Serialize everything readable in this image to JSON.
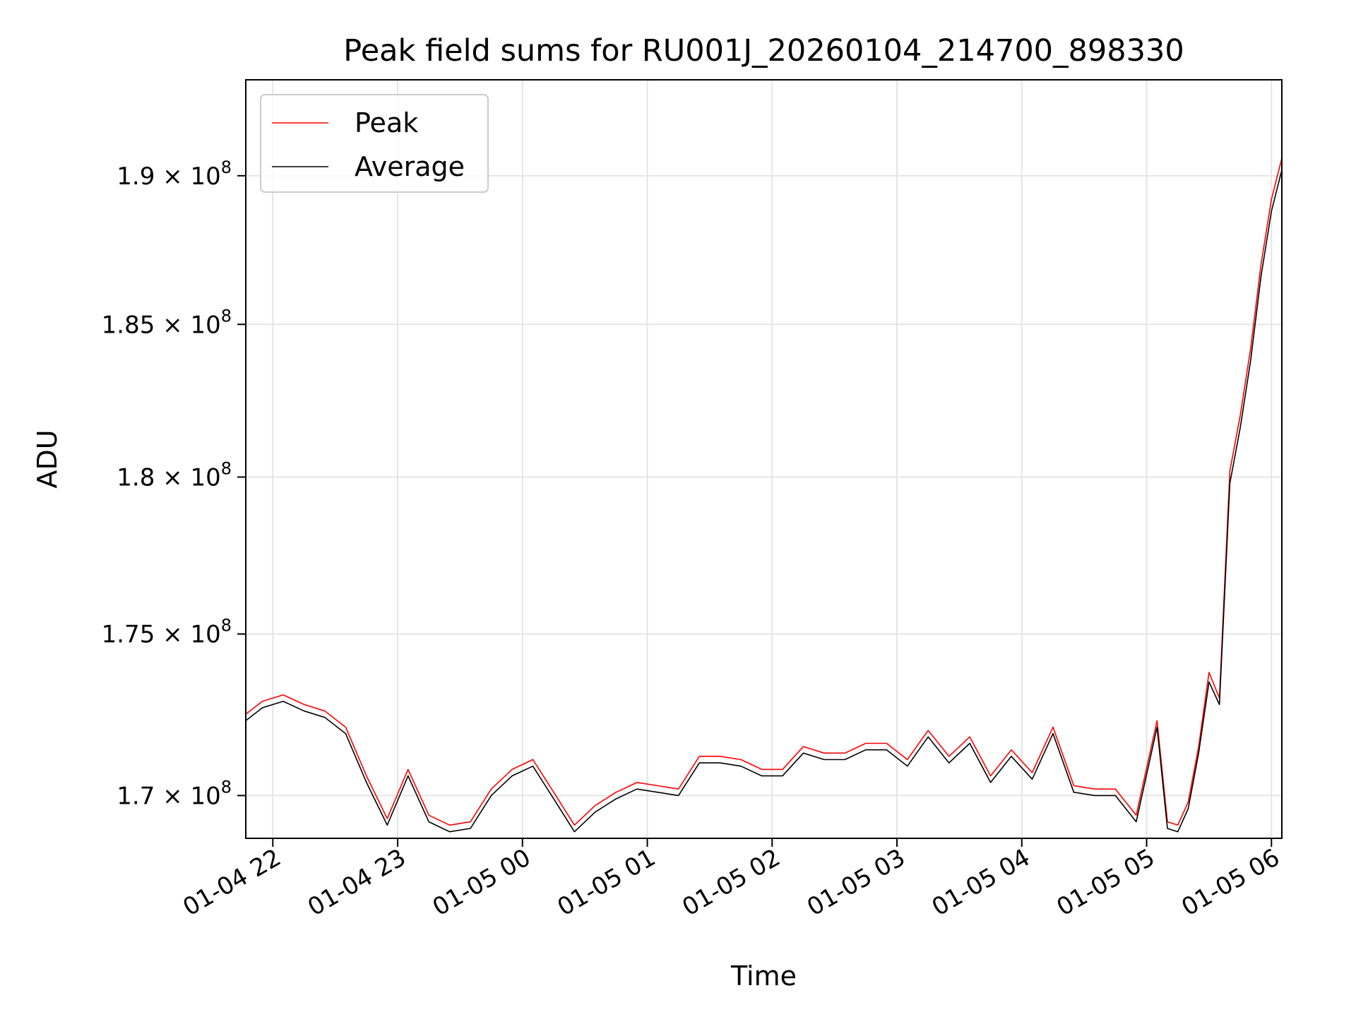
{
  "chart_data": {
    "type": "line",
    "title": "Peak field sums for RU001J_20260104_214700_898330",
    "xlabel": "Time",
    "ylabel": "ADU",
    "x_start": "2026-01-04 21:47",
    "x_end": "2026-01-05 06:05",
    "x_ticks": [
      {
        "label": "01-04 22",
        "t": "2026-01-04 22:00"
      },
      {
        "label": "01-04 23",
        "t": "2026-01-04 23:00"
      },
      {
        "label": "01-05 00",
        "t": "2026-01-05 00:00"
      },
      {
        "label": "01-05 01",
        "t": "2026-01-05 01:00"
      },
      {
        "label": "01-05 02",
        "t": "2026-01-05 02:00"
      },
      {
        "label": "01-05 03",
        "t": "2026-01-05 03:00"
      },
      {
        "label": "01-05 04",
        "t": "2026-01-05 04:00"
      },
      {
        "label": "01-05 05",
        "t": "2026-01-05 05:00"
      },
      {
        "label": "01-05 06",
        "t": "2026-01-05 06:00"
      }
    ],
    "y_scale": "log",
    "ylim": [
      168700000,
      193300000
    ],
    "y_ticks": [
      {
        "value": 170000000,
        "mantissa": "1.7",
        "exponent": "8"
      },
      {
        "value": 175000000,
        "mantissa": "1.75",
        "exponent": "8"
      },
      {
        "value": 180000000,
        "mantissa": "1.8",
        "exponent": "8"
      },
      {
        "value": 185000000,
        "mantissa": "1.85",
        "exponent": "8"
      },
      {
        "value": 190000000,
        "mantissa": "1.9",
        "exponent": "8"
      }
    ],
    "grid": true,
    "legend_position": "top-left",
    "series": [
      {
        "name": "Peak",
        "color": "#ff0000",
        "x": [
          "2026-01-04 21:47",
          "2026-01-04 21:55",
          "2026-01-04 22:05",
          "2026-01-04 22:15",
          "2026-01-04 22:25",
          "2026-01-04 22:35",
          "2026-01-04 22:45",
          "2026-01-04 22:55",
          "2026-01-04 23:05",
          "2026-01-04 23:15",
          "2026-01-04 23:25",
          "2026-01-04 23:35",
          "2026-01-04 23:45",
          "2026-01-04 23:55",
          "2026-01-05 00:05",
          "2026-01-05 00:15",
          "2026-01-05 00:25",
          "2026-01-05 00:35",
          "2026-01-05 00:45",
          "2026-01-05 00:55",
          "2026-01-05 01:05",
          "2026-01-05 01:15",
          "2026-01-05 01:25",
          "2026-01-05 01:35",
          "2026-01-05 01:45",
          "2026-01-05 01:55",
          "2026-01-05 02:05",
          "2026-01-05 02:15",
          "2026-01-05 02:25",
          "2026-01-05 02:35",
          "2026-01-05 02:45",
          "2026-01-05 02:55",
          "2026-01-05 03:05",
          "2026-01-05 03:15",
          "2026-01-05 03:25",
          "2026-01-05 03:35",
          "2026-01-05 03:45",
          "2026-01-05 03:55",
          "2026-01-05 04:05",
          "2026-01-05 04:15",
          "2026-01-05 04:25",
          "2026-01-05 04:35",
          "2026-01-05 04:45",
          "2026-01-05 04:55",
          "2026-01-05 05:05",
          "2026-01-05 05:10",
          "2026-01-05 05:15",
          "2026-01-05 05:20",
          "2026-01-05 05:25",
          "2026-01-05 05:30",
          "2026-01-05 05:35",
          "2026-01-05 05:40",
          "2026-01-05 05:45",
          "2026-01-05 05:50",
          "2026-01-05 05:55",
          "2026-01-05 06:00",
          "2026-01-05 06:05"
        ],
        "y": [
          172500000,
          172900000,
          173100000,
          172800000,
          172600000,
          172100000,
          170600000,
          169300000,
          170800000,
          169400000,
          169100000,
          169200000,
          170200000,
          170800000,
          171100000,
          170100000,
          169100000,
          169700000,
          170100000,
          170400000,
          170300000,
          170200000,
          171200000,
          171200000,
          171100000,
          170800000,
          170800000,
          171500000,
          171300000,
          171300000,
          171600000,
          171600000,
          171100000,
          172000000,
          171200000,
          171800000,
          170600000,
          171400000,
          170700000,
          172100000,
          170300000,
          170200000,
          170200000,
          169400000,
          172300000,
          169200000,
          169100000,
          169800000,
          171500000,
          173800000,
          173000000,
          180200000,
          182000000,
          184200000,
          187000000,
          189200000,
          190600000
        ]
      },
      {
        "name": "Average",
        "color": "#000000",
        "x": [
          "2026-01-04 21:47",
          "2026-01-04 21:55",
          "2026-01-04 22:05",
          "2026-01-04 22:15",
          "2026-01-04 22:25",
          "2026-01-04 22:35",
          "2026-01-04 22:45",
          "2026-01-04 22:55",
          "2026-01-04 23:05",
          "2026-01-04 23:15",
          "2026-01-04 23:25",
          "2026-01-04 23:35",
          "2026-01-04 23:45",
          "2026-01-04 23:55",
          "2026-01-05 00:05",
          "2026-01-05 00:15",
          "2026-01-05 00:25",
          "2026-01-05 00:35",
          "2026-01-05 00:45",
          "2026-01-05 00:55",
          "2026-01-05 01:05",
          "2026-01-05 01:15",
          "2026-01-05 01:25",
          "2026-01-05 01:35",
          "2026-01-05 01:45",
          "2026-01-05 01:55",
          "2026-01-05 02:05",
          "2026-01-05 02:15",
          "2026-01-05 02:25",
          "2026-01-05 02:35",
          "2026-01-05 02:45",
          "2026-01-05 02:55",
          "2026-01-05 03:05",
          "2026-01-05 03:15",
          "2026-01-05 03:25",
          "2026-01-05 03:35",
          "2026-01-05 03:45",
          "2026-01-05 03:55",
          "2026-01-05 04:05",
          "2026-01-05 04:15",
          "2026-01-05 04:25",
          "2026-01-05 04:35",
          "2026-01-05 04:45",
          "2026-01-05 04:55",
          "2026-01-05 05:05",
          "2026-01-05 05:10",
          "2026-01-05 05:15",
          "2026-01-05 05:20",
          "2026-01-05 05:25",
          "2026-01-05 05:30",
          "2026-01-05 05:35",
          "2026-01-05 05:40",
          "2026-01-05 05:45",
          "2026-01-05 05:50",
          "2026-01-05 05:55",
          "2026-01-05 06:00",
          "2026-01-05 06:05"
        ],
        "y": [
          172300000,
          172700000,
          172900000,
          172600000,
          172400000,
          171900000,
          170400000,
          169100000,
          170600000,
          169200000,
          168900000,
          169000000,
          170000000,
          170600000,
          170900000,
          169900000,
          168900000,
          169500000,
          169900000,
          170200000,
          170100000,
          170000000,
          171000000,
          171000000,
          170900000,
          170600000,
          170600000,
          171300000,
          171100000,
          171100000,
          171400000,
          171400000,
          170900000,
          171800000,
          171000000,
          171600000,
          170400000,
          171200000,
          170500000,
          171900000,
          170100000,
          170000000,
          170000000,
          169200000,
          172100000,
          169000000,
          168900000,
          169600000,
          171300000,
          173500000,
          172800000,
          179800000,
          181600000,
          183800000,
          186600000,
          188800000,
          190200000
        ]
      }
    ]
  }
}
